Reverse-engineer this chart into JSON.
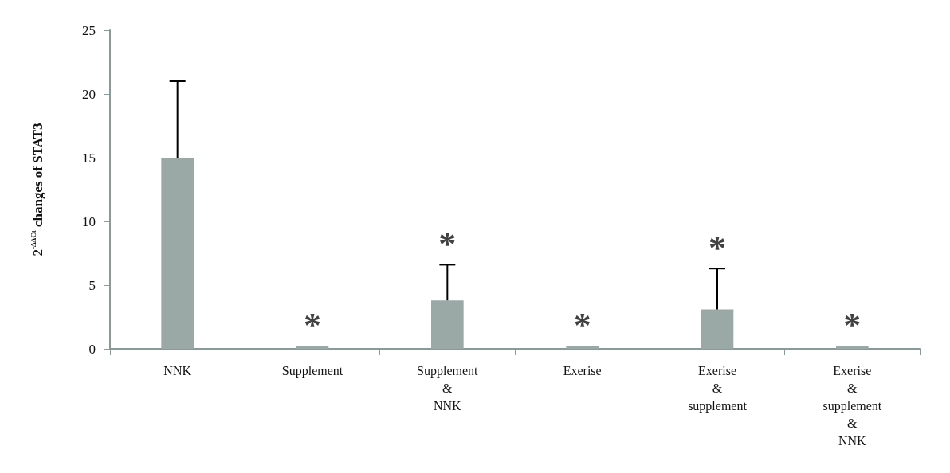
{
  "chart_data": {
    "type": "bar",
    "ylabel": "2$^{-ΔΔCt}$ changes of STAT3",
    "categories": [
      "NNK",
      "Supplement",
      "Supplement\n&\nNNK",
      "Exerise",
      "Exerise\n&\nsupplement",
      "Exerise\n&\nsupplement\n&\nNNK"
    ],
    "values": [
      15,
      0.2,
      3.8,
      0.2,
      3.1,
      0.2
    ],
    "errors": [
      [
        15,
        21
      ],
      null,
      [
        3.8,
        6.6
      ],
      null,
      [
        3.1,
        6.3
      ],
      null
    ],
    "color": "#9aa8a6",
    "ylim": [
      0,
      25
    ],
    "yticks": [
      0,
      5,
      10,
      15,
      20,
      25
    ],
    "grid": false,
    "annotations": [
      {
        "text": "*",
        "x": "Supplement",
        "y": 0.2
      },
      {
        "text": "*",
        "x": "Supplement\n&\nNNK",
        "y": 6.6
      },
      {
        "text": "*",
        "x": "Exerise",
        "y": 0.2
      },
      {
        "text": "*",
        "x": "Exerise\n&\nsupplement",
        "y": 6.3
      },
      {
        "text": "*",
        "x": "Exerise\n&\nsupplement\n&\nNNK",
        "y": 0.2
      }
    ]
  }
}
